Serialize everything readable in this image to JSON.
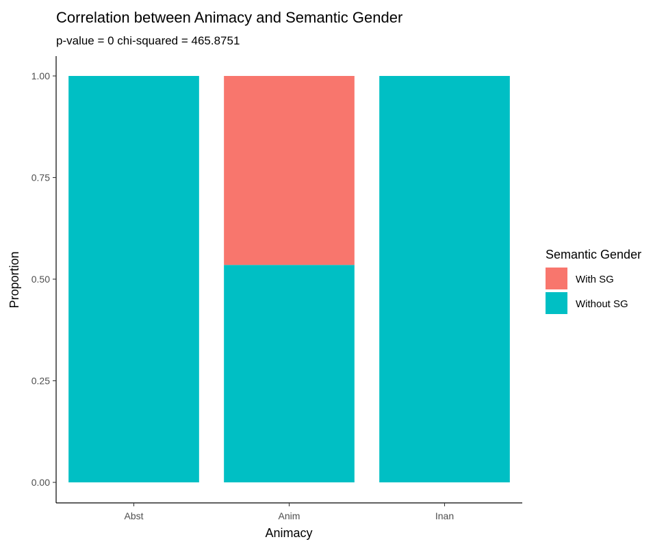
{
  "chart_data": {
    "type": "bar",
    "stacked": true,
    "title": "Correlation between Animacy and Semantic Gender",
    "subtitle": "p-value =  0 chi-squared =  465.8751",
    "xlabel": "Animacy",
    "ylabel": "Proportion",
    "ylim": [
      0,
      1
    ],
    "yticks": [
      "0.00",
      "0.25",
      "0.50",
      "0.75",
      "1.00"
    ],
    "categories": [
      "Abst",
      "Anim",
      "Inan"
    ],
    "series": [
      {
        "name": "Without SG",
        "color": "#00BFC4",
        "values": [
          1.0,
          0.535,
          1.0
        ]
      },
      {
        "name": "With SG",
        "color": "#F8766D",
        "values": [
          0.0,
          0.465,
          0.0
        ]
      }
    ],
    "legend": {
      "title": "Semantic Gender",
      "position": "right",
      "items": [
        {
          "label": "With SG",
          "color": "#F8766D"
        },
        {
          "label": "Without SG",
          "color": "#00BFC4"
        }
      ]
    },
    "grid": false
  }
}
